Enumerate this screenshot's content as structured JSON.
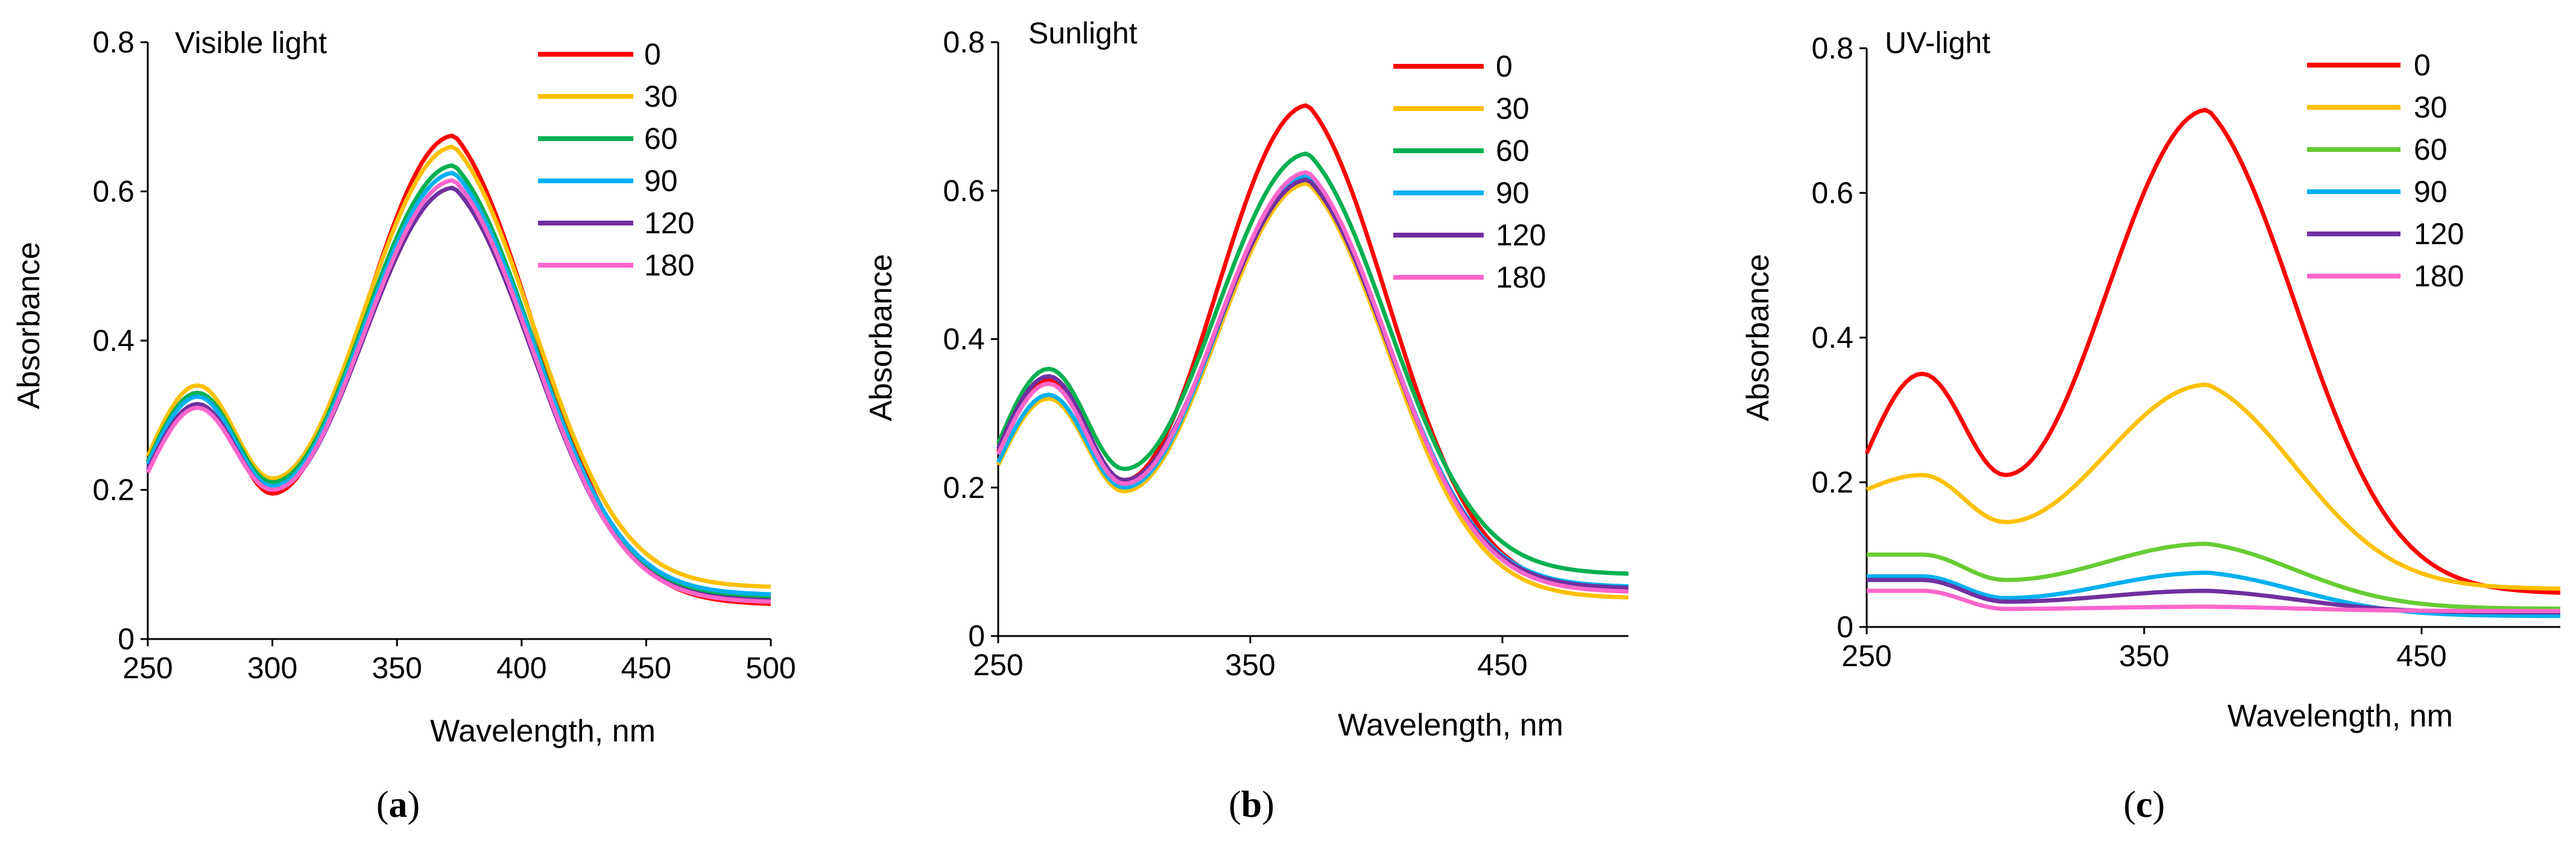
{
  "figure": {
    "panels": [
      {
        "caption_prefix": "(",
        "caption_letter": "a",
        "caption_suffix": ")"
      },
      {
        "caption_prefix": "(",
        "caption_letter": "b",
        "caption_suffix": ")"
      },
      {
        "caption_prefix": "(",
        "caption_letter": "c",
        "caption_suffix": ")"
      }
    ]
  },
  "chart_data": [
    {
      "type": "line",
      "title": "Visible light",
      "xlabel": "Wavelength, nm",
      "ylabel": "Absorbance",
      "xlim": [
        250,
        500
      ],
      "ylim": [
        0,
        0.8
      ],
      "xticks": [
        250,
        300,
        350,
        400,
        450,
        500
      ],
      "yticks": [
        0,
        0.2,
        0.4,
        0.6,
        0.8
      ],
      "ytick_labels": [
        "0",
        "0.2",
        "0.4",
        "0.6",
        "0.8"
      ],
      "legend_position": "top-right",
      "series": [
        {
          "name": "0",
          "color": "#FF0000",
          "peak1": 0.33,
          "valley": 0.195,
          "peak2": 0.675,
          "end": 0.045
        },
        {
          "name": "30",
          "color": "#FFC000",
          "peak1": 0.34,
          "valley": 0.215,
          "peak2": 0.66,
          "end": 0.068
        },
        {
          "name": "60",
          "color": "#00B050",
          "peak1": 0.33,
          "valley": 0.21,
          "peak2": 0.635,
          "end": 0.055
        },
        {
          "name": "90",
          "color": "#00B0F0",
          "peak1": 0.325,
          "valley": 0.205,
          "peak2": 0.625,
          "end": 0.058
        },
        {
          "name": "120",
          "color": "#7030A0",
          "peak1": 0.315,
          "valley": 0.2,
          "peak2": 0.605,
          "end": 0.05
        },
        {
          "name": "180",
          "color": "#FF66CC",
          "peak1": 0.31,
          "valley": 0.2,
          "peak2": 0.615,
          "end": 0.048
        }
      ]
    },
    {
      "type": "line",
      "title": "Sunlight",
      "xlabel": "Wavelength, nm",
      "ylabel": "Absorbance",
      "xlim": [
        250,
        500
      ],
      "ylim": [
        0,
        0.8
      ],
      "xticks": [
        250,
        350,
        450
      ],
      "yticks": [
        0,
        0.2,
        0.4,
        0.6,
        0.8
      ],
      "ytick_labels": [
        "0",
        "0.2",
        "0.4",
        "0.6",
        "0.8"
      ],
      "legend_position": "top-right",
      "series": [
        {
          "name": "0",
          "color": "#FF0000",
          "peak1": 0.345,
          "valley": 0.21,
          "peak2": 0.715,
          "end": 0.06
        },
        {
          "name": "30",
          "color": "#FFC000",
          "peak1": 0.32,
          "valley": 0.195,
          "peak2": 0.61,
          "end": 0.05
        },
        {
          "name": "60",
          "color": "#00B050",
          "peak1": 0.36,
          "valley": 0.225,
          "peak2": 0.65,
          "end": 0.082
        },
        {
          "name": "90",
          "color": "#00B0F0",
          "peak1": 0.325,
          "valley": 0.2,
          "peak2": 0.62,
          "end": 0.065
        },
        {
          "name": "120",
          "color": "#7030A0",
          "peak1": 0.35,
          "valley": 0.21,
          "peak2": 0.615,
          "end": 0.063
        },
        {
          "name": "180",
          "color": "#FF66CC",
          "peak1": 0.34,
          "valley": 0.205,
          "peak2": 0.625,
          "end": 0.058
        }
      ]
    },
    {
      "type": "line",
      "title": "UV-light",
      "xlabel": "Wavelength, nm",
      "ylabel": "Absorbance",
      "xlim": [
        250,
        500
      ],
      "ylim": [
        0,
        0.8
      ],
      "xticks": [
        250,
        350,
        450
      ],
      "yticks": [
        0,
        0.2,
        0.4,
        0.6,
        0.8
      ],
      "ytick_labels": [
        "0",
        "0.2",
        "0.4",
        "0.6",
        "0.8"
      ],
      "legend_position": "top-right",
      "series": [
        {
          "name": "0",
          "color": "#FF0000",
          "start": 0.24,
          "peak1": 0.35,
          "valley": 0.21,
          "peak2": 0.715,
          "end": 0.045
        },
        {
          "name": "30",
          "color": "#FFC000",
          "start": 0.19,
          "peak1": 0.21,
          "valley": 0.145,
          "peak2": 0.335,
          "end": 0.052
        },
        {
          "name": "60",
          "color": "#66CC33",
          "start": 0.1,
          "peak1": 0.1,
          "valley": 0.065,
          "peak2": 0.115,
          "end": 0.025
        },
        {
          "name": "90",
          "color": "#00B0F0",
          "start": 0.07,
          "peak1": 0.07,
          "valley": 0.04,
          "peak2": 0.075,
          "end": 0.015
        },
        {
          "name": "120",
          "color": "#7030A0",
          "start": 0.065,
          "peak1": 0.065,
          "valley": 0.035,
          "peak2": 0.05,
          "end": 0.02
        },
        {
          "name": "180",
          "color": "#FF66CC",
          "start": 0.05,
          "peak1": 0.05,
          "valley": 0.025,
          "peak2": 0.028,
          "end": 0.022
        }
      ]
    }
  ]
}
